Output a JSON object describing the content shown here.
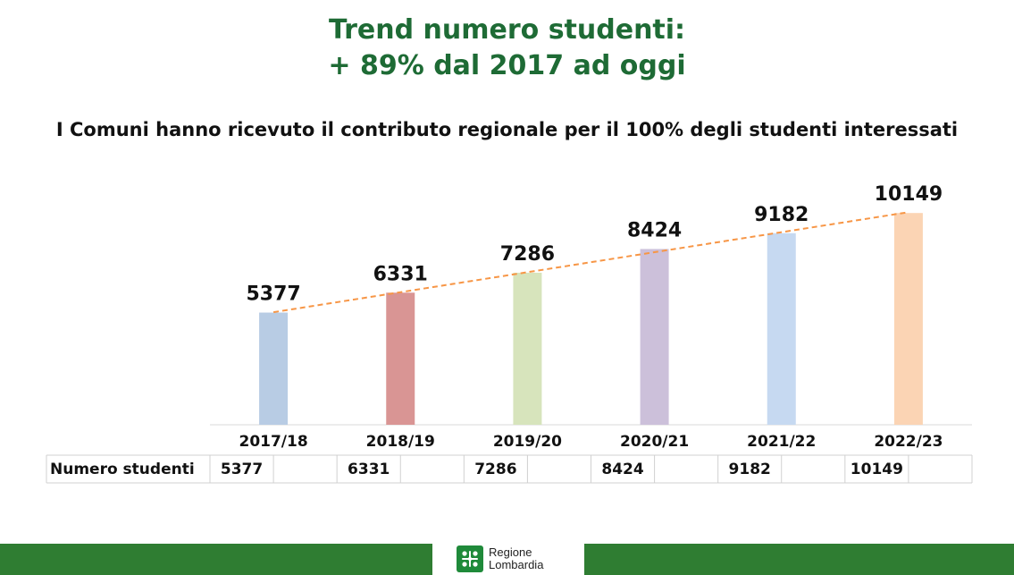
{
  "header": {
    "title_line1": "Trend numero studenti:",
    "title_line2": "+ 89% dal 2017 ad oggi",
    "subtitle": "I Comuni hanno ricevuto il contributo regionale per il 100% degli studenti interessati"
  },
  "chart_data": {
    "type": "bar",
    "categories": [
      "2017/18",
      "2018/19",
      "2019/20",
      "2020/21",
      "2021/22",
      "2022/23"
    ],
    "values": [
      5377,
      6331,
      7286,
      8424,
      9182,
      10149
    ],
    "bar_colors": [
      "#b8cce4",
      "#d99594",
      "#d7e4bc",
      "#ccc0da",
      "#c6d9f1",
      "#fbd4b4"
    ],
    "trendline": {
      "type": "linear",
      "style": "dashed",
      "color": "#f79646"
    },
    "ylim": [
      0,
      10500
    ],
    "grid": false,
    "data_labels": true,
    "table": {
      "row_label": "Numero studenti",
      "values": [
        "5377",
        "6331",
        "7286",
        "8424",
        "9182",
        "10149"
      ]
    }
  },
  "footer": {
    "logo_line1": "Regione",
    "logo_line2": "Lombardia",
    "bar_color": "#2f7d32"
  }
}
